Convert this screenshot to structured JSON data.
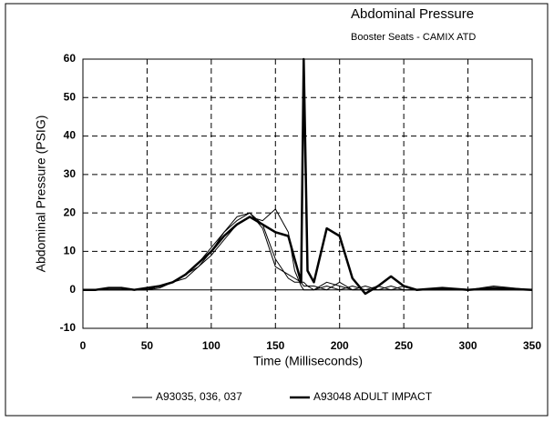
{
  "chart_data": {
    "type": "line",
    "title": "Abdominal Pressure",
    "subtitle": "Booster Seats - CAMIX ATD",
    "xlabel": "Time (Milliseconds)",
    "ylabel": "Abdominal Pressure  (PSIG)",
    "x": [
      0,
      10,
      20,
      30,
      40,
      50,
      60,
      70,
      80,
      90,
      100,
      110,
      120,
      130,
      140,
      150,
      160,
      165,
      170,
      172,
      175,
      180,
      190,
      200,
      210,
      220,
      230,
      240,
      250,
      260,
      280,
      300,
      320,
      350
    ],
    "series": [
      {
        "name": "A93035,  036,  037",
        "color": "#000000",
        "width": 1,
        "curves": [
          [
            0,
            0,
            0,
            0,
            0,
            0,
            1,
            2,
            3,
            6,
            10,
            15,
            19,
            20,
            17,
            8,
            3,
            2,
            2,
            2,
            1,
            1,
            0,
            2,
            0,
            0,
            1,
            0,
            0,
            0,
            0,
            0,
            0,
            0
          ],
          [
            0,
            0,
            0,
            0,
            0,
            0,
            0.5,
            2,
            4,
            6,
            9,
            13,
            17,
            19,
            18,
            21,
            15,
            5,
            1,
            0,
            0,
            0,
            2,
            1,
            0,
            1,
            0,
            0,
            1,
            0,
            0,
            0,
            1,
            0
          ],
          [
            0,
            0,
            0,
            0,
            0,
            0,
            1,
            2,
            4,
            7,
            11,
            15,
            18,
            20,
            16,
            6,
            4,
            3,
            2,
            1,
            1,
            0,
            1,
            0,
            1,
            0,
            0,
            1,
            0,
            0,
            0,
            0,
            0,
            0
          ]
        ]
      },
      {
        "name": "A93048 ADULT IMPACT",
        "color": "#000000",
        "width": 2.5,
        "values": [
          0,
          0,
          0.5,
          0.5,
          0,
          0.5,
          1,
          2,
          4,
          7,
          10,
          14,
          17,
          19,
          17,
          15,
          14,
          8,
          2,
          60,
          5,
          2,
          16,
          14,
          3,
          -1,
          1,
          3.5,
          1,
          0,
          0.5,
          0,
          0.5,
          0
        ]
      }
    ],
    "xlim": [
      0,
      350
    ],
    "xticks": [
      0,
      50,
      100,
      150,
      200,
      250,
      300,
      350
    ],
    "ylim": [
      -10,
      60
    ],
    "yticks": [
      -10,
      0,
      10,
      20,
      30,
      40,
      50,
      60
    ],
    "grid": true
  }
}
